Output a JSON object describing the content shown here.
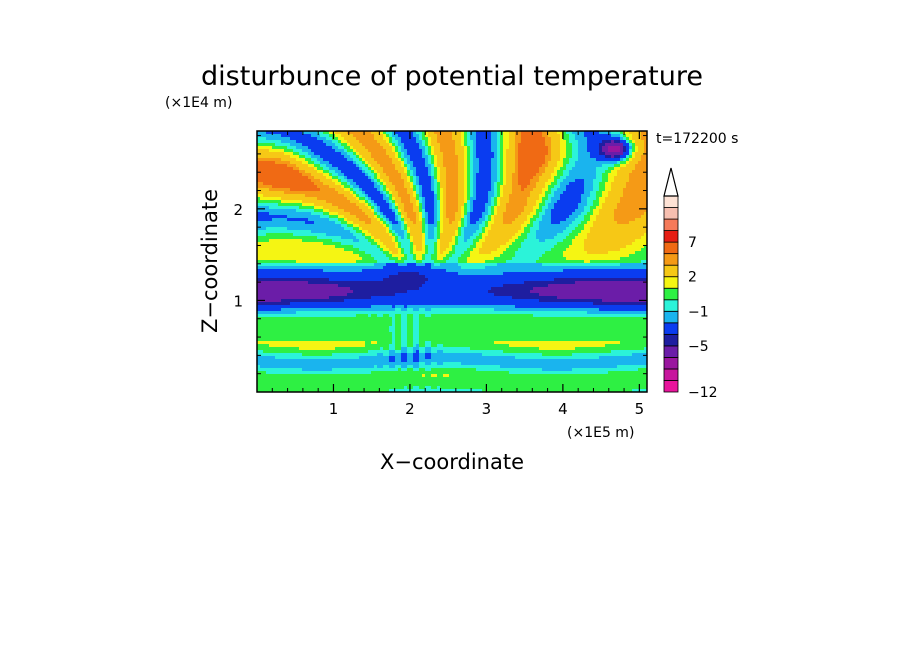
{
  "chart_data": {
    "type": "heatmap",
    "title": "disturbunce of potential temperature",
    "time_label": "t=172200 s",
    "xlabel": "X−coordinate",
    "ylabel": "Z−coordinate",
    "x_unit": "(×1E5 m)",
    "y_unit": "(×1E4 m)",
    "xlim": [
      0,
      5.1
    ],
    "ylim": [
      0,
      2.85
    ],
    "x_ticks": [
      {
        "v": 1,
        "label": "1"
      },
      {
        "v": 2,
        "label": "2"
      },
      {
        "v": 3,
        "label": "3"
      },
      {
        "v": 4,
        "label": "4"
      },
      {
        "v": 5,
        "label": "5"
      }
    ],
    "y_ticks": [
      {
        "v": 1,
        "label": "1"
      },
      {
        "v": 2,
        "label": "2"
      }
    ],
    "colorbar": {
      "levels": [
        {
          "value": -12,
          "color": "#e8159c"
        },
        {
          "value": -11,
          "color": "#c7169d"
        },
        {
          "value": -9,
          "color": "#9a169f"
        },
        {
          "value": -7,
          "color": "#6b1da8"
        },
        {
          "value": -5,
          "color": "#1e1ea0"
        },
        {
          "value": -4,
          "color": "#0a3cf0"
        },
        {
          "value": -2,
          "color": "#1ab4ee"
        },
        {
          "value": -1,
          "color": "#2bf3d9"
        },
        {
          "value": 0,
          "color": "#2ef043"
        },
        {
          "value": 1,
          "color": "#f5f513"
        },
        {
          "value": 2,
          "color": "#f6c816"
        },
        {
          "value": 4,
          "color": "#f59a16"
        },
        {
          "value": 5,
          "color": "#f06a14"
        },
        {
          "value": 7,
          "color": "#e61e14"
        },
        {
          "value": 9,
          "color": "#f57a5a"
        },
        {
          "value": 11,
          "color": "#f7bfb0"
        },
        {
          "value": 12,
          "color": "#fde2d5"
        }
      ],
      "tick_labels": [
        {
          "v": -12,
          "label": "−12"
        },
        {
          "v": -5,
          "label": "−5"
        },
        {
          "v": -1,
          "label": "−1"
        },
        {
          "v": 2,
          "label": "2"
        },
        {
          "v": 7,
          "label": "7"
        }
      ]
    }
  }
}
